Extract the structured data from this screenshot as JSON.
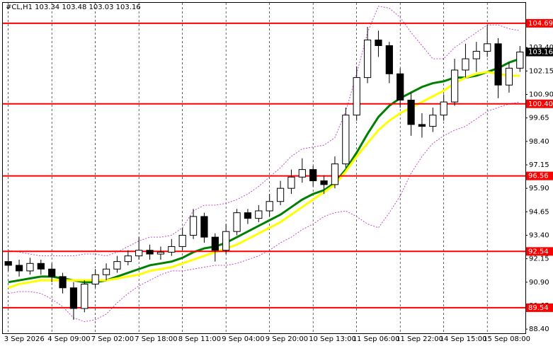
{
  "chart_data": {
    "type": "candlestick",
    "title": "#CL,H1 103.34 103.48 103.03 103.16",
    "categories": [
      "3 Sep 2026",
      null,
      null,
      null,
      "4 Sep 09:00",
      null,
      null,
      null,
      "7 Sep 02:00",
      null,
      null,
      null,
      "7 Sep 18:00",
      null,
      null,
      null,
      "8 Sep 11:00",
      null,
      null,
      null,
      "9 Sep 04:00",
      null,
      null,
      null,
      "9 Sep 20:00",
      null,
      null,
      null,
      "10 Sep 13:00",
      null,
      null,
      null,
      "11 Sep 06:00",
      null,
      null,
      null,
      "11 Sep 22:00",
      null,
      null,
      null,
      "14 Sep 15:00",
      null,
      null,
      null,
      "15 Sep 08:00",
      null,
      null,
      null
    ],
    "open": [
      92.0,
      91.8,
      91.5,
      91.9,
      91.6,
      91.2,
      90.6,
      89.5,
      90.8,
      91.3,
      91.6,
      92.0,
      92.3,
      92.6,
      92.4,
      92.5,
      92.8,
      93.4,
      94.4,
      93.3,
      92.6,
      93.6,
      94.6,
      94.3,
      94.7,
      95.2,
      95.9,
      96.5,
      96.9,
      96.3,
      96.1,
      97.2,
      99.8,
      101.8,
      103.8,
      103.5,
      102.0,
      100.6,
      99.3,
      99.2,
      99.8,
      100.5,
      102.2,
      102.8,
      103.2,
      103.6,
      101.4,
      102.3
    ],
    "high": [
      92.5,
      92.1,
      92.2,
      92.1,
      91.9,
      91.4,
      90.9,
      91.0,
      91.6,
      91.9,
      92.3,
      92.6,
      93.3,
      92.9,
      92.8,
      93.2,
      93.8,
      94.8,
      94.6,
      93.5,
      94.0,
      94.8,
      94.8,
      95.0,
      95.6,
      96.3,
      96.9,
      97.5,
      97.1,
      96.6,
      97.6,
      100.2,
      102.4,
      104.5,
      104.3,
      103.7,
      102.3,
      101.0,
      99.9,
      100.2,
      100.9,
      102.8,
      103.6,
      103.7,
      104.6,
      103.9,
      102.6,
      103.48
    ],
    "low": [
      91.5,
      91.2,
      91.3,
      91.3,
      90.9,
      90.3,
      88.9,
      89.3,
      90.6,
      91.0,
      91.4,
      91.8,
      92.1,
      92.1,
      92.1,
      92.3,
      92.6,
      93.2,
      93.0,
      92.0,
      92.4,
      93.4,
      94.0,
      94.1,
      94.4,
      95.0,
      95.6,
      96.2,
      96.0,
      95.6,
      95.9,
      97.0,
      99.5,
      101.5,
      102.9,
      101.5,
      100.2,
      98.7,
      98.6,
      98.9,
      99.5,
      100.3,
      101.8,
      102.1,
      102.9,
      100.7,
      101.0,
      102.1
    ],
    "close": [
      91.8,
      91.5,
      91.9,
      91.6,
      91.2,
      90.6,
      89.5,
      90.8,
      91.3,
      91.6,
      92.0,
      92.3,
      92.6,
      92.4,
      92.5,
      92.8,
      93.4,
      94.4,
      93.3,
      92.6,
      93.6,
      94.6,
      94.3,
      94.7,
      95.2,
      95.9,
      96.5,
      96.9,
      96.3,
      96.1,
      97.2,
      99.8,
      101.8,
      103.8,
      103.5,
      102.0,
      100.6,
      99.3,
      99.2,
      99.8,
      100.5,
      102.2,
      102.8,
      103.2,
      103.6,
      101.4,
      102.3,
      103.16
    ],
    "lines": [
      {
        "color": "#008000",
        "width": 3,
        "dash": "",
        "values": [
          90.9,
          91.0,
          91.1,
          91.2,
          91.2,
          91.1,
          91.0,
          90.9,
          90.9,
          91.0,
          91.2,
          91.4,
          91.6,
          91.8,
          91.9,
          92.0,
          92.2,
          92.5,
          92.7,
          92.8,
          93.0,
          93.3,
          93.6,
          93.9,
          94.2,
          94.5,
          94.9,
          95.3,
          95.6,
          95.8,
          96.2,
          96.9,
          97.8,
          98.8,
          99.7,
          100.3,
          100.7,
          101.0,
          101.3,
          101.5,
          101.6,
          101.8,
          101.8,
          101.9,
          102.1,
          102.3,
          102.6,
          102.8
        ]
      },
      {
        "color": "#ffff00",
        "width": 3,
        "dash": "",
        "values": [
          90.6,
          90.8,
          90.9,
          91.0,
          91.0,
          91.0,
          91.0,
          91.0,
          91.0,
          91.0,
          91.1,
          91.2,
          91.3,
          91.5,
          91.6,
          91.7,
          91.9,
          92.1,
          92.3,
          92.5,
          92.7,
          92.9,
          93.2,
          93.5,
          93.8,
          94.1,
          94.5,
          94.9,
          95.3,
          95.7,
          96.1,
          96.8,
          97.6,
          98.3,
          99.0,
          99.5,
          99.9,
          100.2,
          100.5,
          100.8,
          101.1,
          101.5,
          101.8,
          102.0,
          102.1,
          102.0,
          101.9,
          101.9
        ]
      },
      {
        "color": "#c050c0",
        "width": 1,
        "dash": "2 2",
        "values": [
          92.6,
          92.5,
          92.4,
          92.3,
          92.3,
          92.3,
          92.3,
          92.4,
          92.4,
          92.3,
          92.5,
          92.8,
          93.1,
          93.3,
          93.3,
          93.4,
          93.8,
          94.7,
          95.0,
          95.0,
          95.1,
          95.3,
          95.6,
          96.0,
          96.5,
          97.0,
          97.6,
          98.0,
          98.1,
          98.2,
          98.6,
          100.0,
          102.0,
          104.2,
          105.6,
          105.5,
          105.0,
          104.2,
          103.5,
          102.8,
          102.8,
          103.4,
          103.8,
          104.2,
          104.6,
          104.6,
          104.4,
          104.3
        ]
      },
      {
        "color": "#c050c0",
        "width": 1,
        "dash": "2 2",
        "values": [
          90.3,
          90.4,
          90.4,
          90.3,
          90.0,
          89.6,
          89.0,
          88.8,
          88.9,
          89.2,
          89.8,
          90.3,
          90.7,
          91.0,
          91.3,
          91.5,
          91.5,
          91.6,
          91.7,
          91.8,
          91.8,
          91.9,
          92.1,
          92.3,
          92.6,
          93.0,
          93.3,
          93.7,
          94.0,
          94.4,
          94.6,
          94.7,
          94.4,
          94.0,
          93.8,
          94.6,
          95.5,
          96.7,
          97.6,
          98.3,
          98.7,
          99.0,
          99.2,
          99.6,
          100.0,
          100.2,
          100.4,
          100.5
        ]
      }
    ],
    "levels": [
      {
        "value": 104.69,
        "label": "104.69"
      },
      {
        "value": 100.4,
        "label": "100.40"
      },
      {
        "value": 96.56,
        "label": "96.56"
      },
      {
        "value": 92.54,
        "label": "92.54"
      },
      {
        "value": 89.54,
        "label": "89.54"
      }
    ],
    "level_color": "#ff0000",
    "current": {
      "value": 103.16,
      "label": "103.16"
    },
    "ylim": [
      88.18,
      105.78
    ],
    "yticks": [
      {
        "value": 103.4,
        "label": "103.40"
      },
      102.15,
      {
        "value": 100.9,
        "label": "100.90"
      },
      99.65,
      {
        "value": 98.4,
        "label": "98.40"
      },
      97.15,
      {
        "value": 95.9,
        "label": "95.90"
      },
      94.65,
      {
        "value": 93.4,
        "label": "93.40"
      },
      92.15,
      {
        "value": 90.9,
        "label": "90.90"
      },
      89.65,
      {
        "value": 88.4,
        "label": "88.40"
      }
    ],
    "grid": true
  }
}
